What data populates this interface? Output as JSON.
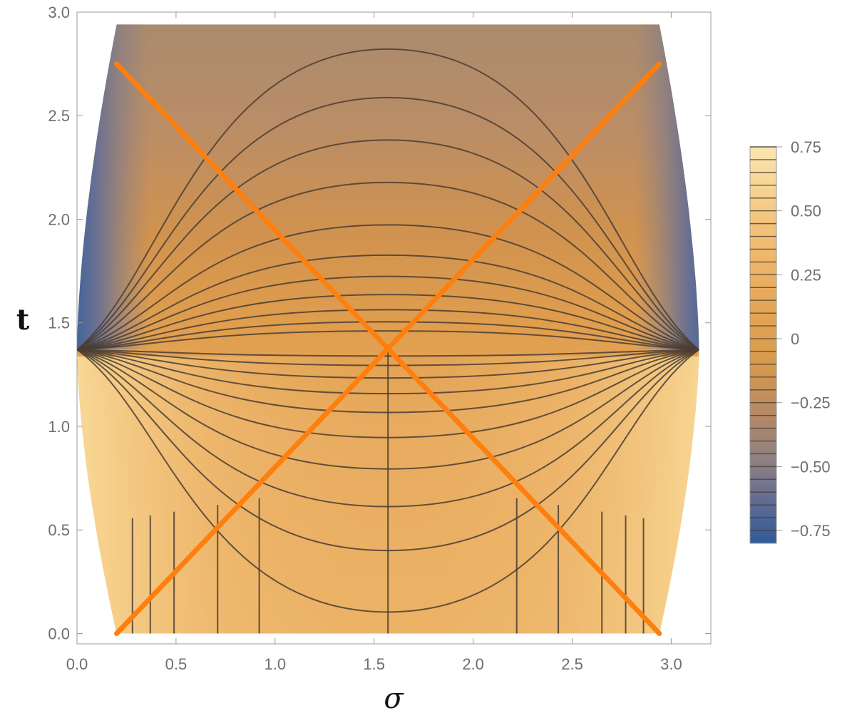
{
  "chart_data": {
    "type": "contour",
    "xlabel": "σ",
    "ylabel": "t",
    "xlim": [
      0.0,
      3.2
    ],
    "ylim": [
      -0.05,
      3.0
    ],
    "x_ticks": [
      "0.0",
      "0.5",
      "1.0",
      "1.5",
      "2.0",
      "2.5",
      "3.0"
    ],
    "y_ticks": [
      "0.0",
      "0.5",
      "1.0",
      "1.5",
      "2.0",
      "2.5",
      "3.0"
    ],
    "domain_sigma": [
      0.2,
      2.94
    ],
    "domain_t": [
      0.0,
      2.94
    ],
    "singular_points": [
      {
        "sigma": 0.0,
        "t": 1.37
      },
      {
        "sigma": 3.14,
        "t": 1.37
      }
    ],
    "colorbar": {
      "range": [
        -0.8,
        0.75
      ],
      "ticks": [
        "0.75",
        "0.50",
        "0.25",
        "0",
        "−0.25",
        "−0.50",
        "−0.75"
      ],
      "colors": [
        "#2f5b9a",
        "#5b6b92",
        "#8a8088",
        "#a8876e",
        "#c28f5f",
        "#d39a4e",
        "#e9b162",
        "#f3c682",
        "#fbe3aa"
      ]
    },
    "series": [
      {
        "style": "orange",
        "points": [
          [
            0.2,
            2.75
          ],
          [
            2.94,
            0.0
          ]
        ]
      },
      {
        "style": "orange",
        "points": [
          [
            0.2,
            0.0
          ],
          [
            2.94,
            2.75
          ]
        ]
      }
    ],
    "grid": false,
    "legend": "right"
  }
}
